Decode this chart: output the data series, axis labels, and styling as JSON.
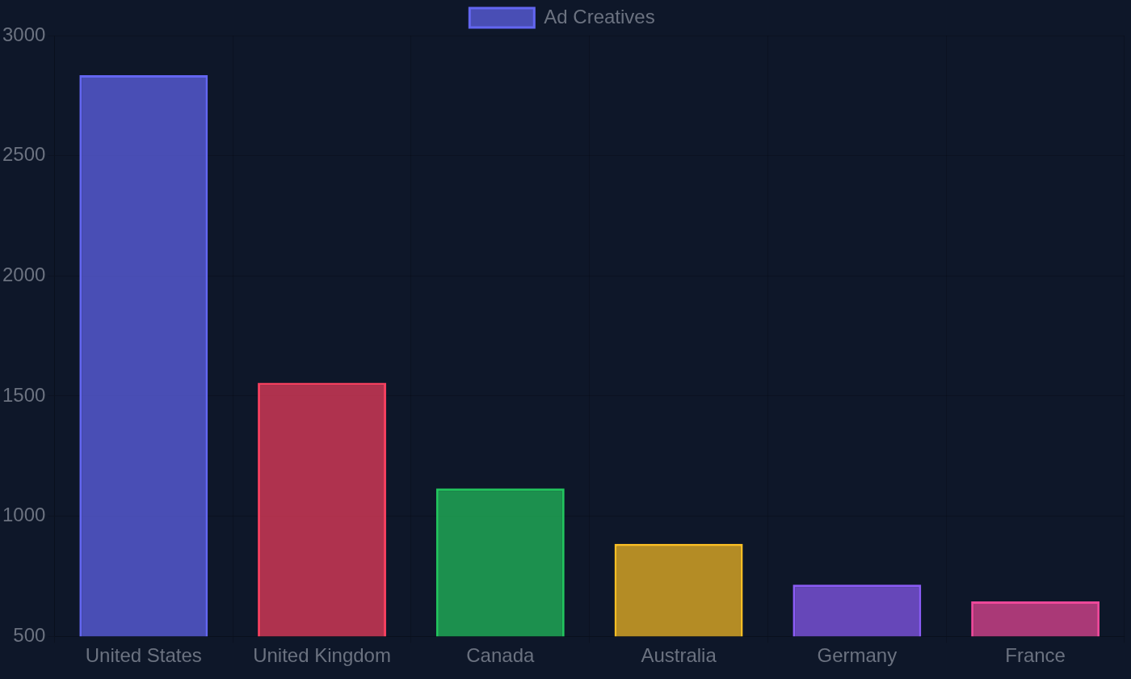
{
  "chart_data": {
    "type": "bar",
    "categories": [
      "United States",
      "United Kingdom",
      "Canada",
      "Australia",
      "Germany",
      "France"
    ],
    "series": [
      {
        "name": "Ad Creatives",
        "colors": [
          "#6366f1",
          "#f43f5e",
          "#22c55e",
          "#fbbf24",
          "#8b5cf6",
          "#ec4899"
        ],
        "values": [
          2835,
          1555,
          1115,
          885,
          715,
          645
        ]
      }
    ],
    "ylim": [
      500,
      3000
    ],
    "yticks": [
      500,
      1000,
      1500,
      2000,
      2500,
      3000
    ],
    "grid": true,
    "legend": "top"
  }
}
